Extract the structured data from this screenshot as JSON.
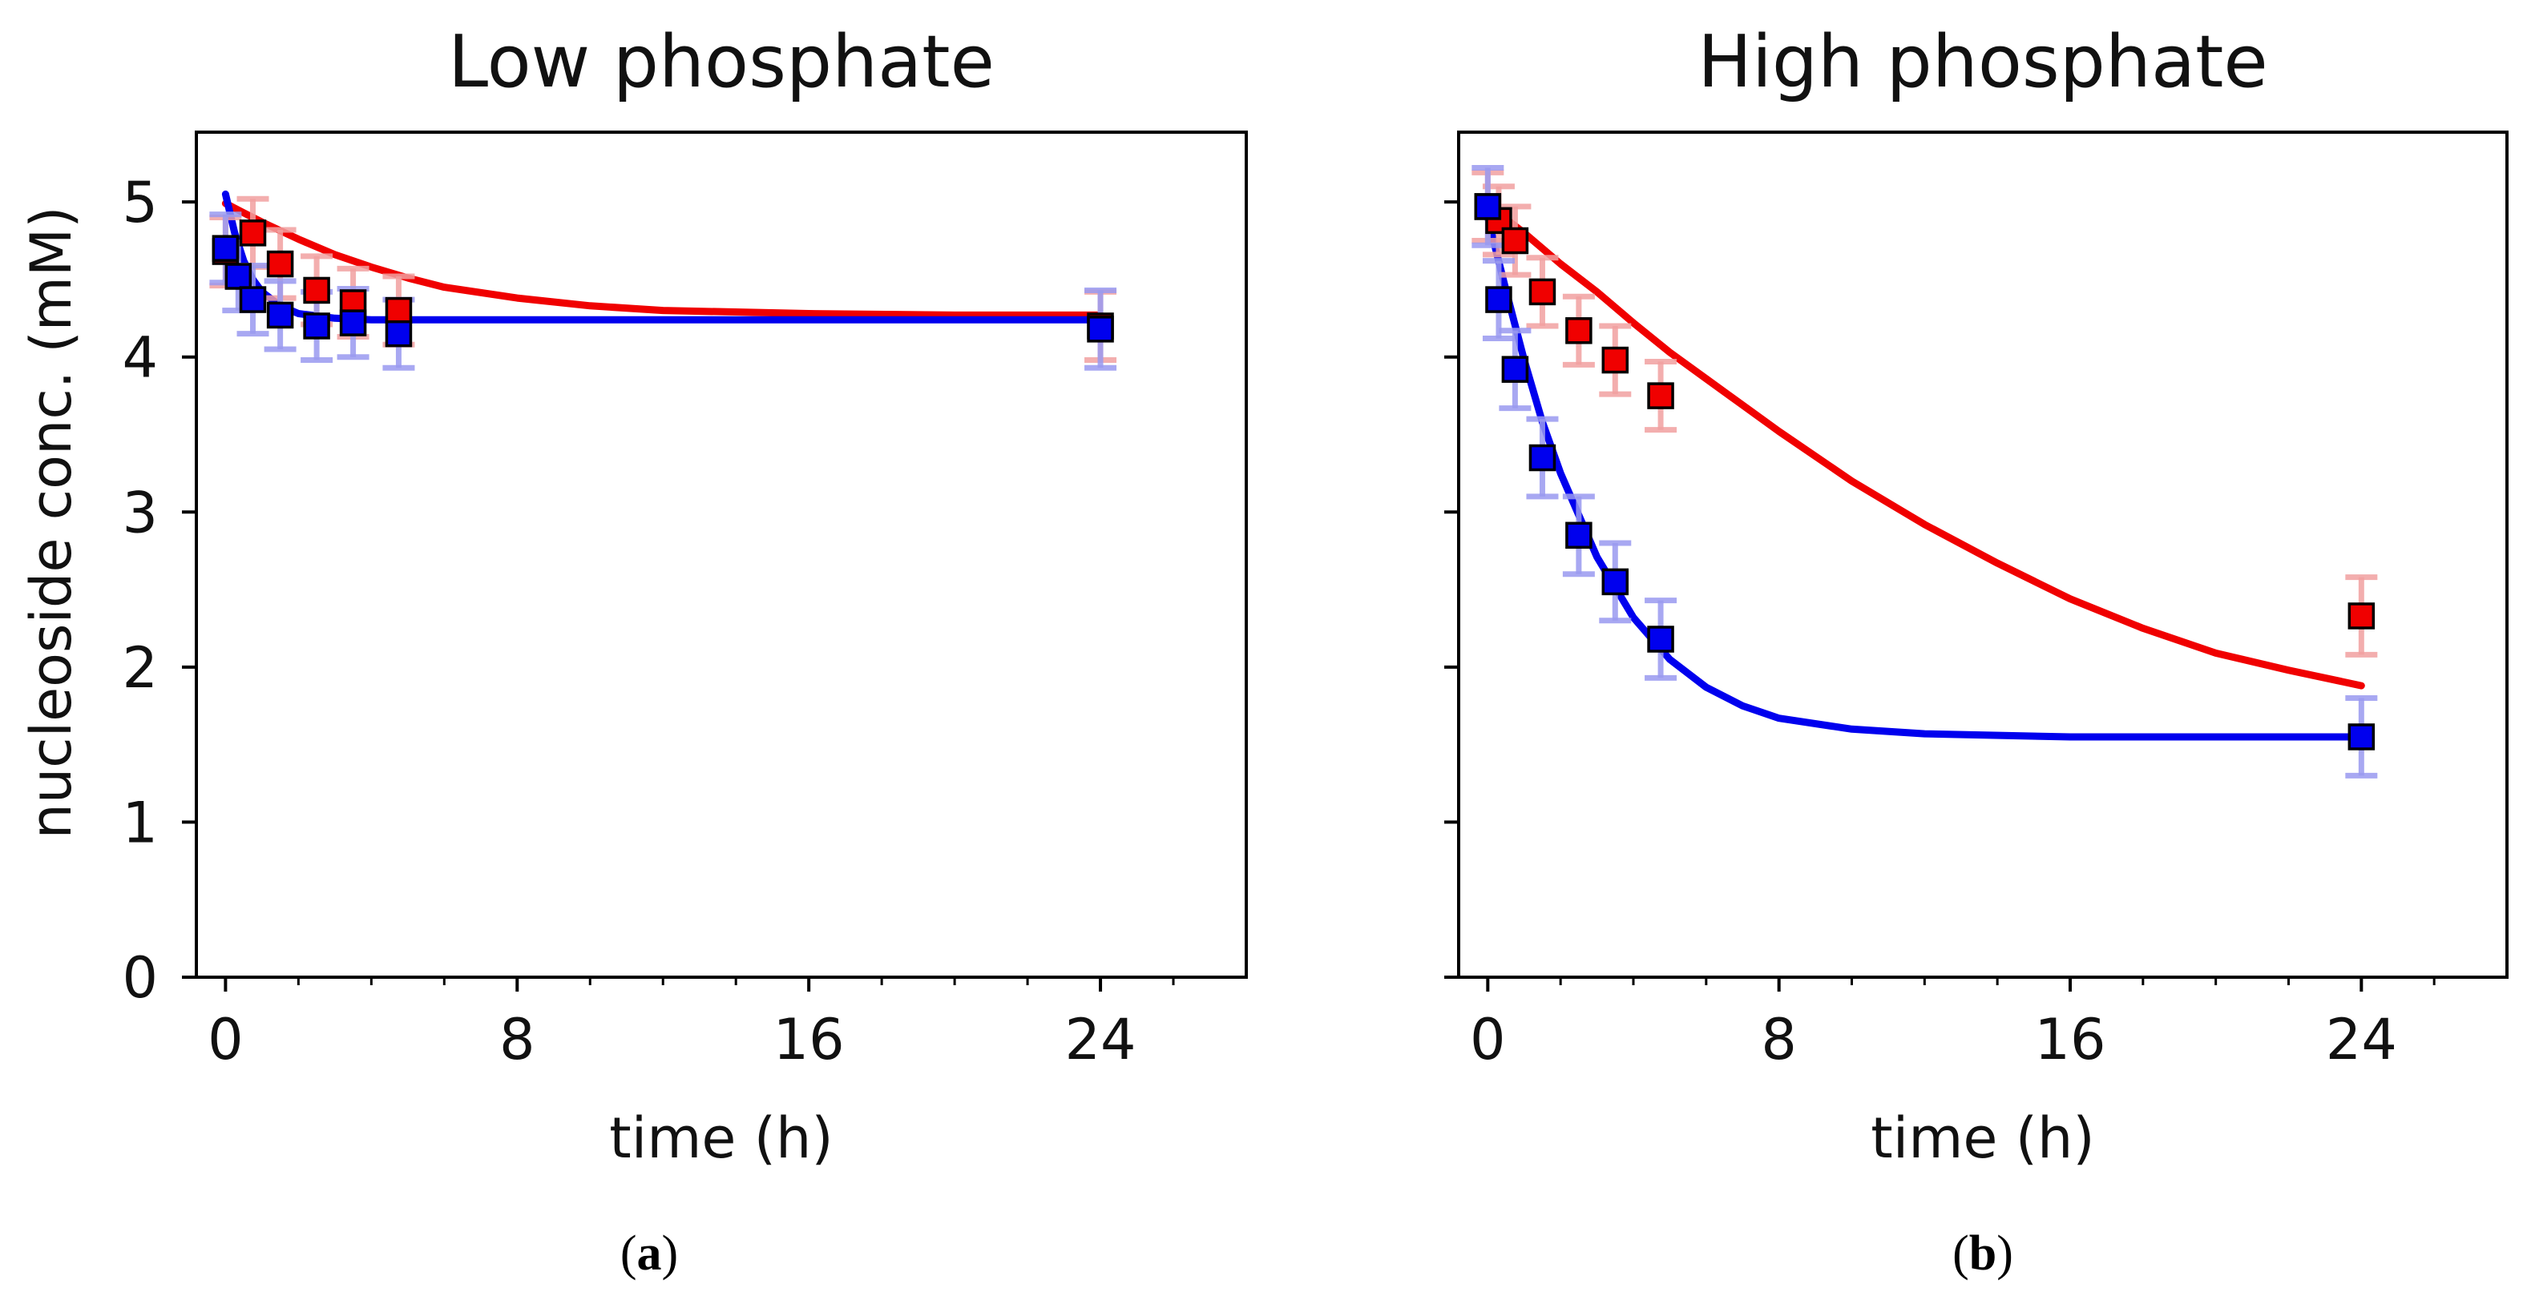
{
  "colors": {
    "red": "#f00000",
    "blue": "#0000ee",
    "red_err": "#f2a0a0",
    "blue_err": "#9a9af0",
    "axis": "#000000"
  },
  "captions": [
    "a",
    "b"
  ],
  "chart_data": [
    {
      "type": "scatter",
      "title": "Low phosphate",
      "xlabel": "time (h)",
      "ylabel": "nucleoside conc. (mM)",
      "xlim": [
        -0.8,
        28
      ],
      "ylim": [
        0,
        5.45
      ],
      "xticks": [
        0,
        8,
        16,
        24
      ],
      "yticks": [
        0,
        1,
        2,
        3,
        4,
        5
      ],
      "series": [
        {
          "name": "red",
          "color": "red",
          "x": [
            0,
            0.75,
            1.5,
            2.5,
            3.5,
            4.75,
            24
          ],
          "y": [
            4.68,
            4.8,
            4.6,
            4.43,
            4.35,
            4.3,
            4.2
          ],
          "err": [
            0.22,
            0.22,
            0.22,
            0.22,
            0.22,
            0.22,
            0.22
          ],
          "fit": {
            "x": [
              0,
              0.5,
              1,
              2,
              3,
              4,
              5,
              6,
              8,
              10,
              12,
              16,
              20,
              24
            ],
            "y": [
              4.99,
              4.93,
              4.87,
              4.76,
              4.66,
              4.58,
              4.51,
              4.45,
              4.38,
              4.33,
              4.3,
              4.28,
              4.27,
              4.27
            ]
          }
        },
        {
          "name": "blue",
          "color": "blue",
          "x": [
            0,
            0.35,
            0.75,
            1.5,
            2.5,
            3.5,
            4.75,
            24
          ],
          "y": [
            4.7,
            4.52,
            4.37,
            4.27,
            4.2,
            4.22,
            4.15,
            4.18
          ],
          "err": [
            0.22,
            0.22,
            0.22,
            0.22,
            0.22,
            0.22,
            0.22,
            0.25
          ],
          "fit": {
            "x": [
              0,
              0.25,
              0.5,
              0.75,
              1,
              1.5,
              2,
              3,
              4,
              5,
              6,
              8,
              12,
              24
            ],
            "y": [
              5.05,
              4.8,
              4.62,
              4.5,
              4.42,
              4.33,
              4.28,
              4.25,
              4.24,
              4.24,
              4.24,
              4.24,
              4.24,
              4.24
            ]
          }
        }
      ]
    },
    {
      "type": "scatter",
      "title": "High phosphate",
      "xlabel": "time (h)",
      "ylabel": "",
      "xlim": [
        -0.8,
        28
      ],
      "ylim": [
        0,
        5.45
      ],
      "xticks": [
        0,
        8,
        16,
        24
      ],
      "yticks": [
        0,
        1,
        2,
        3,
        4,
        5
      ],
      "series": [
        {
          "name": "red",
          "color": "red",
          "x": [
            0,
            0.3,
            0.75,
            1.5,
            2.5,
            3.5,
            4.75,
            24
          ],
          "y": [
            4.97,
            4.88,
            4.75,
            4.42,
            4.17,
            3.98,
            3.75,
            2.33
          ],
          "err": [
            0.22,
            0.22,
            0.22,
            0.22,
            0.22,
            0.22,
            0.22,
            0.25
          ],
          "fit": {
            "x": [
              0,
              1,
              2,
              3,
              4,
              5,
              6,
              8,
              10,
              12,
              14,
              16,
              18,
              20,
              22,
              24
            ],
            "y": [
              4.98,
              4.8,
              4.6,
              4.42,
              4.22,
              4.03,
              3.86,
              3.52,
              3.2,
              2.92,
              2.67,
              2.44,
              2.25,
              2.09,
              1.98,
              1.88
            ]
          }
        },
        {
          "name": "blue",
          "color": "blue",
          "x": [
            0,
            0.3,
            0.75,
            1.5,
            2.5,
            3.5,
            4.75,
            24
          ],
          "y": [
            4.97,
            4.37,
            3.92,
            3.35,
            2.85,
            2.55,
            2.18,
            1.55
          ],
          "err": [
            0.25,
            0.25,
            0.25,
            0.25,
            0.25,
            0.25,
            0.25,
            0.25
          ],
          "fit": {
            "x": [
              0,
              0.5,
              1,
              1.5,
              2,
              3,
              4,
              5,
              6,
              7,
              8,
              10,
              12,
              16,
              20,
              24
            ],
            "y": [
              4.9,
              4.43,
              3.98,
              3.58,
              3.25,
              2.71,
              2.32,
              2.05,
              1.87,
              1.75,
              1.67,
              1.6,
              1.57,
              1.55,
              1.55,
              1.55
            ]
          }
        }
      ]
    }
  ]
}
